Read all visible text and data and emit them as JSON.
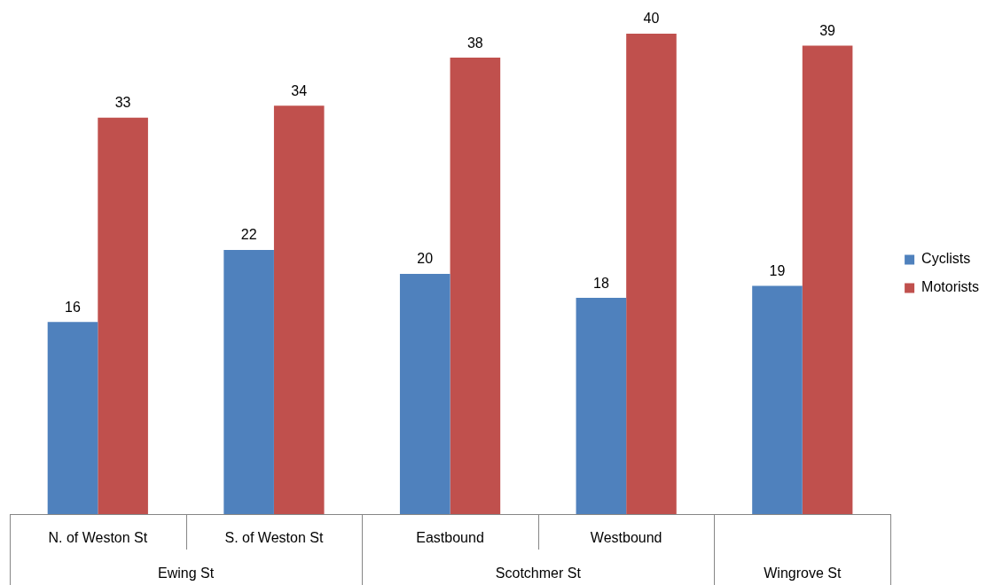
{
  "chart_data": {
    "type": "bar",
    "categories": [
      "N. of Weston St",
      "S. of Weston St",
      "Eastbound",
      "Westbound",
      null
    ],
    "series": [
      {
        "name": "Cyclists",
        "color": "#4f81bd",
        "values": [
          16,
          22,
          20,
          18,
          19
        ]
      },
      {
        "name": "Motorists",
        "color": "#c0504d",
        "values": [
          33,
          34,
          38,
          40,
          39
        ]
      }
    ],
    "annotations": [
      "Ewing St",
      "Scotchmer St",
      "Wingrove St"
    ],
    "data_labels": true,
    "legend": "right"
  }
}
